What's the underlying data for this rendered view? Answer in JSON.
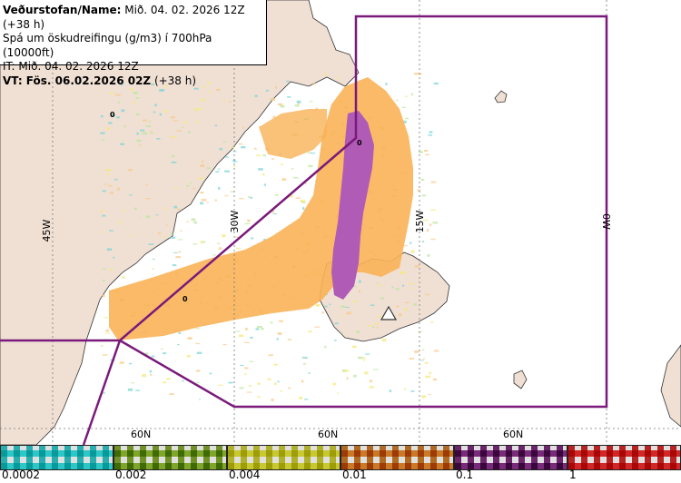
{
  "info": {
    "line1_bold": "Veðurstofan/Name:",
    "line1_rest": " Mið. 04. 02. 2026 12Z (+38 h)",
    "line2": "Spá um öskudreifingu (g/m3) í 700hPa (10000ft)",
    "line3": "IT: Mið. 04. 02. 2026 12Z",
    "line4_bold": "VT: Fös. 06.02.2026 02Z",
    "line4_rest": " (+38 h)"
  },
  "grid_labels": {
    "lon_45w": "45W",
    "lon_30w": "30W",
    "lon_15w": "15W",
    "lon_0w": "0W",
    "lat_a": "60N",
    "lat_b": "60N",
    "lat_c": "60N"
  },
  "map_markers": {
    "zero_1": "0",
    "zero_2": "0",
    "zero_3": "0"
  },
  "legend": {
    "labels": [
      "0.0002",
      "0.002",
      "0.004",
      "0.01",
      "0.1",
      "1"
    ],
    "colors": [
      "#2ec6c6",
      "#7fa52a",
      "#c8c832",
      "#c87a28",
      "#7a2a7a",
      "#d02828"
    ]
  },
  "colors": {
    "land": "#f0e0d4",
    "sea": "#ffffff",
    "boundary": "#7a1a7a",
    "ash_orange": "#f9b257",
    "ash_purple": "#b05bb6"
  }
}
